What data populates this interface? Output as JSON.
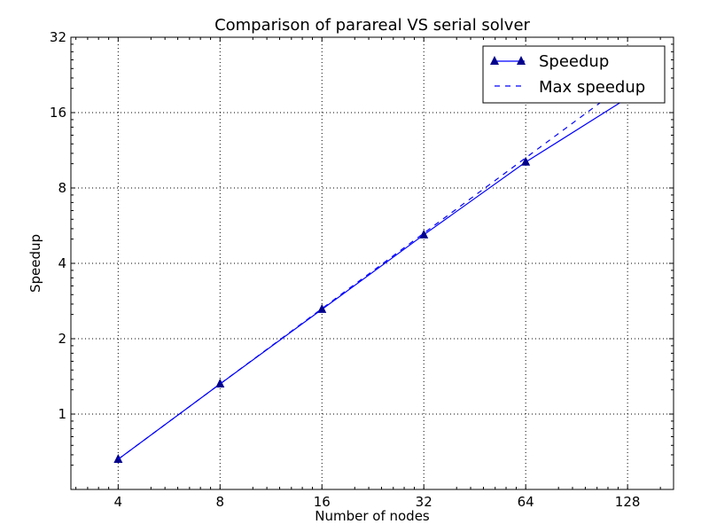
{
  "chart_data": {
    "type": "line",
    "title": "Comparison of parareal VS serial solver",
    "xlabel": "Number of nodes",
    "ylabel": "Speedup",
    "x_scale": "log2",
    "y_scale": "log2",
    "x": [
      4,
      8,
      16,
      32,
      64,
      128
    ],
    "xlim": [
      2.9,
      175
    ],
    "ylim": [
      0.5,
      32
    ],
    "x_ticks": [
      4,
      8,
      16,
      32,
      64,
      128
    ],
    "x_tick_labels": [
      "4",
      "8",
      "16",
      "32",
      "64",
      "128"
    ],
    "y_ticks": [
      1,
      2,
      4,
      8,
      16,
      32
    ],
    "y_tick_labels": [
      "1",
      "2",
      "4",
      "8",
      "16",
      "32"
    ],
    "grid": true,
    "legend_position": "top-right",
    "series": [
      {
        "name": "Speedup",
        "style": "solid",
        "marker": "triangle",
        "color": "#0000ff",
        "marker_color": "#00008b",
        "values": [
          0.66,
          1.32,
          2.62,
          5.2,
          10.15,
          18.3
        ]
      },
      {
        "name": "Max speedup",
        "style": "dashed",
        "marker": "none",
        "color": "#0000ff",
        "values": [
          0.66,
          1.32,
          2.64,
          5.28,
          10.56,
          21.12
        ]
      }
    ]
  }
}
